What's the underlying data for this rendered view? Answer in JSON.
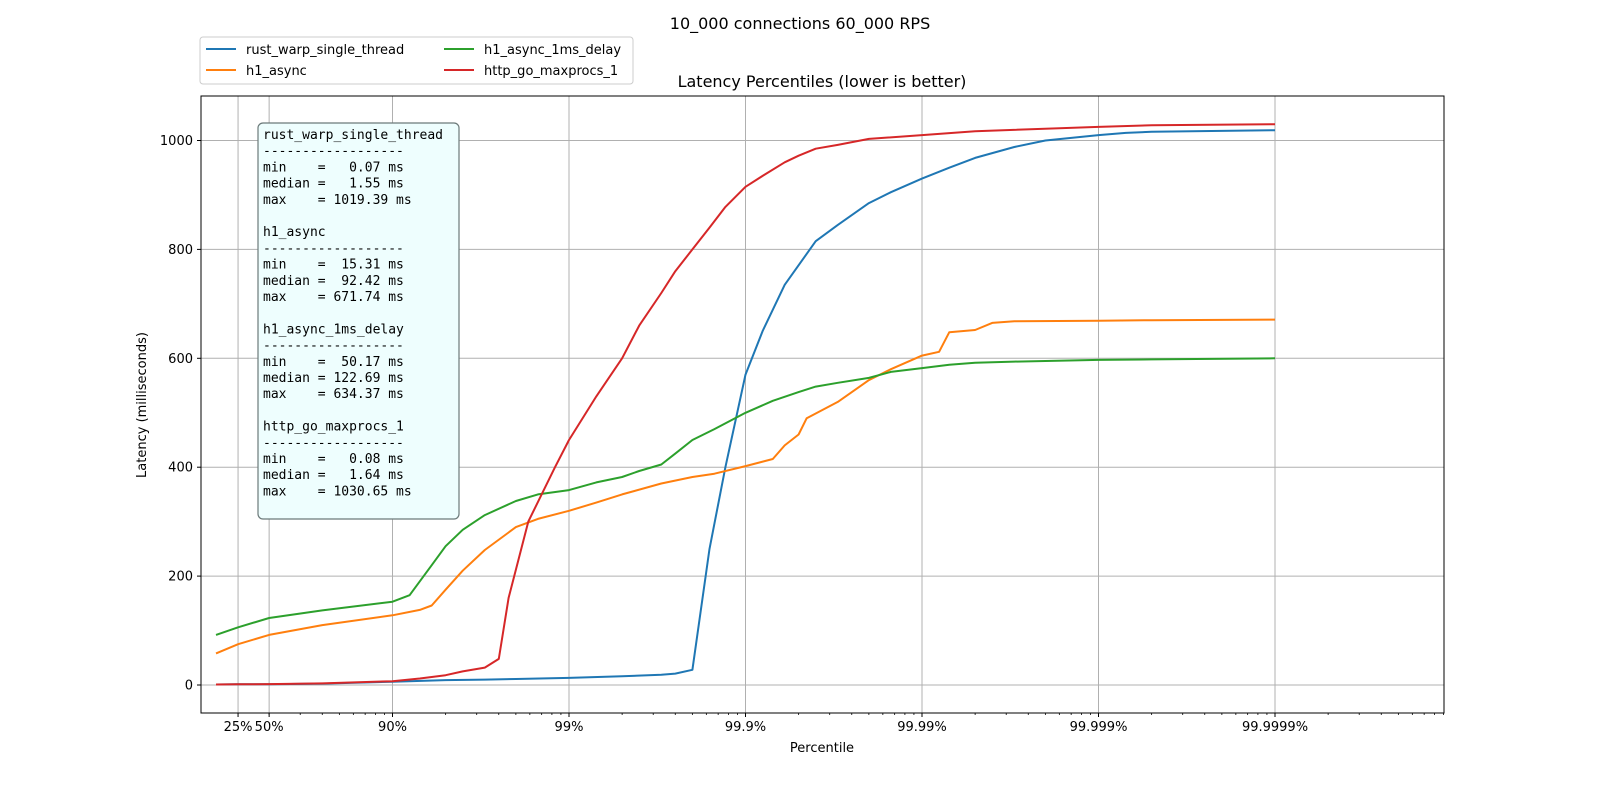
{
  "chart_data": {
    "type": "line",
    "suptitle": "10_000 connections 60_000 RPS",
    "title": "Latency Percentiles (lower is better)",
    "xlabel": "Percentile",
    "ylabel": "Latency (milliseconds)",
    "x_scale": "log10(1/(1-p))",
    "x_range_percentile": [
      0,
      99.9999
    ],
    "ylim": [
      -50,
      1082
    ],
    "grid": true,
    "legend_position": "above-left",
    "x_ticks": [
      {
        "label": "25%",
        "percentile": 25
      },
      {
        "label": "50%",
        "percentile": 50
      },
      {
        "label": "90%",
        "percentile": 90
      },
      {
        "label": "99%",
        "percentile": 99
      },
      {
        "label": "99.9%",
        "percentile": 99.9
      },
      {
        "label": "99.99%",
        "percentile": 99.99
      },
      {
        "label": "99.999%",
        "percentile": 99.999
      },
      {
        "label": "99.9999%",
        "percentile": 99.9999
      }
    ],
    "y_ticks": [
      0,
      200,
      400,
      600,
      800,
      1000
    ],
    "series": [
      {
        "name": "rust_warp_single_thread",
        "color": "#1f77b4",
        "points": [
          [
            0,
            1
          ],
          [
            25,
            1.2
          ],
          [
            50,
            1.5
          ],
          [
            75,
            2.5
          ],
          [
            90,
            6
          ],
          [
            95,
            9
          ],
          [
            97,
            10
          ],
          [
            98,
            11
          ],
          [
            99,
            13
          ],
          [
            99.5,
            16
          ],
          [
            99.7,
            19
          ],
          [
            99.75,
            21
          ],
          [
            99.8,
            28
          ],
          [
            99.84,
            250
          ],
          [
            99.87,
            400
          ],
          [
            99.9,
            570
          ],
          [
            99.92,
            650
          ],
          [
            99.94,
            735
          ],
          [
            99.96,
            815
          ],
          [
            99.97,
            845
          ],
          [
            99.98,
            885
          ],
          [
            99.985,
            905
          ],
          [
            99.99,
            930
          ],
          [
            99.993,
            950
          ],
          [
            99.995,
            968
          ],
          [
            99.997,
            988
          ],
          [
            99.998,
            1000
          ],
          [
            99.999,
            1010
          ],
          [
            99.9993,
            1014
          ],
          [
            99.9995,
            1016
          ],
          [
            99.9999,
            1019
          ]
        ]
      },
      {
        "name": "h1_async",
        "color": "#ff7f0e",
        "points": [
          [
            0,
            58
          ],
          [
            25,
            75
          ],
          [
            50,
            92
          ],
          [
            75,
            110
          ],
          [
            90,
            128
          ],
          [
            93,
            138
          ],
          [
            94,
            146
          ],
          [
            95,
            175
          ],
          [
            96,
            210
          ],
          [
            97,
            248
          ],
          [
            98,
            290
          ],
          [
            98.5,
            305
          ],
          [
            99,
            320
          ],
          [
            99.3,
            335
          ],
          [
            99.5,
            350
          ],
          [
            99.7,
            370
          ],
          [
            99.8,
            382
          ],
          [
            99.85,
            388
          ],
          [
            99.9,
            402
          ],
          [
            99.93,
            415
          ],
          [
            99.94,
            440
          ],
          [
            99.95,
            460
          ],
          [
            99.955,
            490
          ],
          [
            99.97,
            520
          ],
          [
            99.98,
            560
          ],
          [
            99.985,
            580
          ],
          [
            99.99,
            605
          ],
          [
            99.992,
            612
          ],
          [
            99.993,
            648
          ],
          [
            99.995,
            652
          ],
          [
            99.996,
            665
          ],
          [
            99.997,
            668
          ],
          [
            99.999,
            669
          ],
          [
            99.9995,
            670
          ],
          [
            99.9999,
            671
          ]
        ]
      },
      {
        "name": "h1_async_1ms_delay",
        "color": "#2ca02c",
        "points": [
          [
            0,
            92
          ],
          [
            25,
            106
          ],
          [
            50,
            123
          ],
          [
            75,
            137
          ],
          [
            90,
            153
          ],
          [
            92,
            165
          ],
          [
            94,
            220
          ],
          [
            95,
            255
          ],
          [
            96,
            285
          ],
          [
            97,
            312
          ],
          [
            98,
            338
          ],
          [
            98.5,
            350
          ],
          [
            99,
            358
          ],
          [
            99.3,
            372
          ],
          [
            99.5,
            382
          ],
          [
            99.6,
            393
          ],
          [
            99.7,
            405
          ],
          [
            99.75,
            425
          ],
          [
            99.8,
            450
          ],
          [
            99.85,
            470
          ],
          [
            99.9,
            500
          ],
          [
            99.93,
            522
          ],
          [
            99.95,
            538
          ],
          [
            99.96,
            548
          ],
          [
            99.97,
            555
          ],
          [
            99.98,
            564
          ],
          [
            99.985,
            575
          ],
          [
            99.99,
            582
          ],
          [
            99.993,
            588
          ],
          [
            99.995,
            592
          ],
          [
            99.997,
            594
          ],
          [
            99.999,
            597
          ],
          [
            99.9995,
            598
          ],
          [
            99.9999,
            600
          ]
        ]
      },
      {
        "name": "http_go_maxprocs_1",
        "color": "#d62728",
        "points": [
          [
            0,
            1
          ],
          [
            25,
            1.3
          ],
          [
            50,
            1.6
          ],
          [
            75,
            3
          ],
          [
            90,
            7
          ],
          [
            93,
            12
          ],
          [
            95,
            18
          ],
          [
            96,
            25
          ],
          [
            97,
            32
          ],
          [
            97.5,
            48
          ],
          [
            97.8,
            160
          ],
          [
            98.3,
            300
          ],
          [
            98.8,
            400
          ],
          [
            99,
            450
          ],
          [
            99.3,
            530
          ],
          [
            99.5,
            600
          ],
          [
            99.6,
            660
          ],
          [
            99.7,
            720
          ],
          [
            99.75,
            760
          ],
          [
            99.8,
            800
          ],
          [
            99.84,
            840
          ],
          [
            99.87,
            878
          ],
          [
            99.9,
            915
          ],
          [
            99.92,
            935
          ],
          [
            99.94,
            960
          ],
          [
            99.95,
            972
          ],
          [
            99.96,
            985
          ],
          [
            99.97,
            992
          ],
          [
            99.98,
            1003
          ],
          [
            99.99,
            1010
          ],
          [
            99.995,
            1017
          ],
          [
            99.999,
            1025
          ],
          [
            99.9995,
            1028
          ],
          [
            99.9999,
            1030
          ]
        ]
      }
    ],
    "stats_box": [
      {
        "name": "rust_warp_single_thread",
        "separator": "------------------",
        "min": "min    =   0.07 ms",
        "median": "median =   1.55 ms",
        "max": "max    = 1019.39 ms"
      },
      {
        "name": "h1_async",
        "separator": "------------------",
        "min": "min    =  15.31 ms",
        "median": "median =  92.42 ms",
        "max": "max    = 671.74 ms"
      },
      {
        "name": "h1_async_1ms_delay",
        "separator": "------------------",
        "min": "min    =  50.17 ms",
        "median": "median = 122.69 ms",
        "max": "max    = 634.37 ms"
      },
      {
        "name": "http_go_maxprocs_1",
        "separator": "------------------",
        "min": "min    =   0.08 ms",
        "median": "median =   1.64 ms",
        "max": "max    = 1030.65 ms"
      }
    ]
  }
}
